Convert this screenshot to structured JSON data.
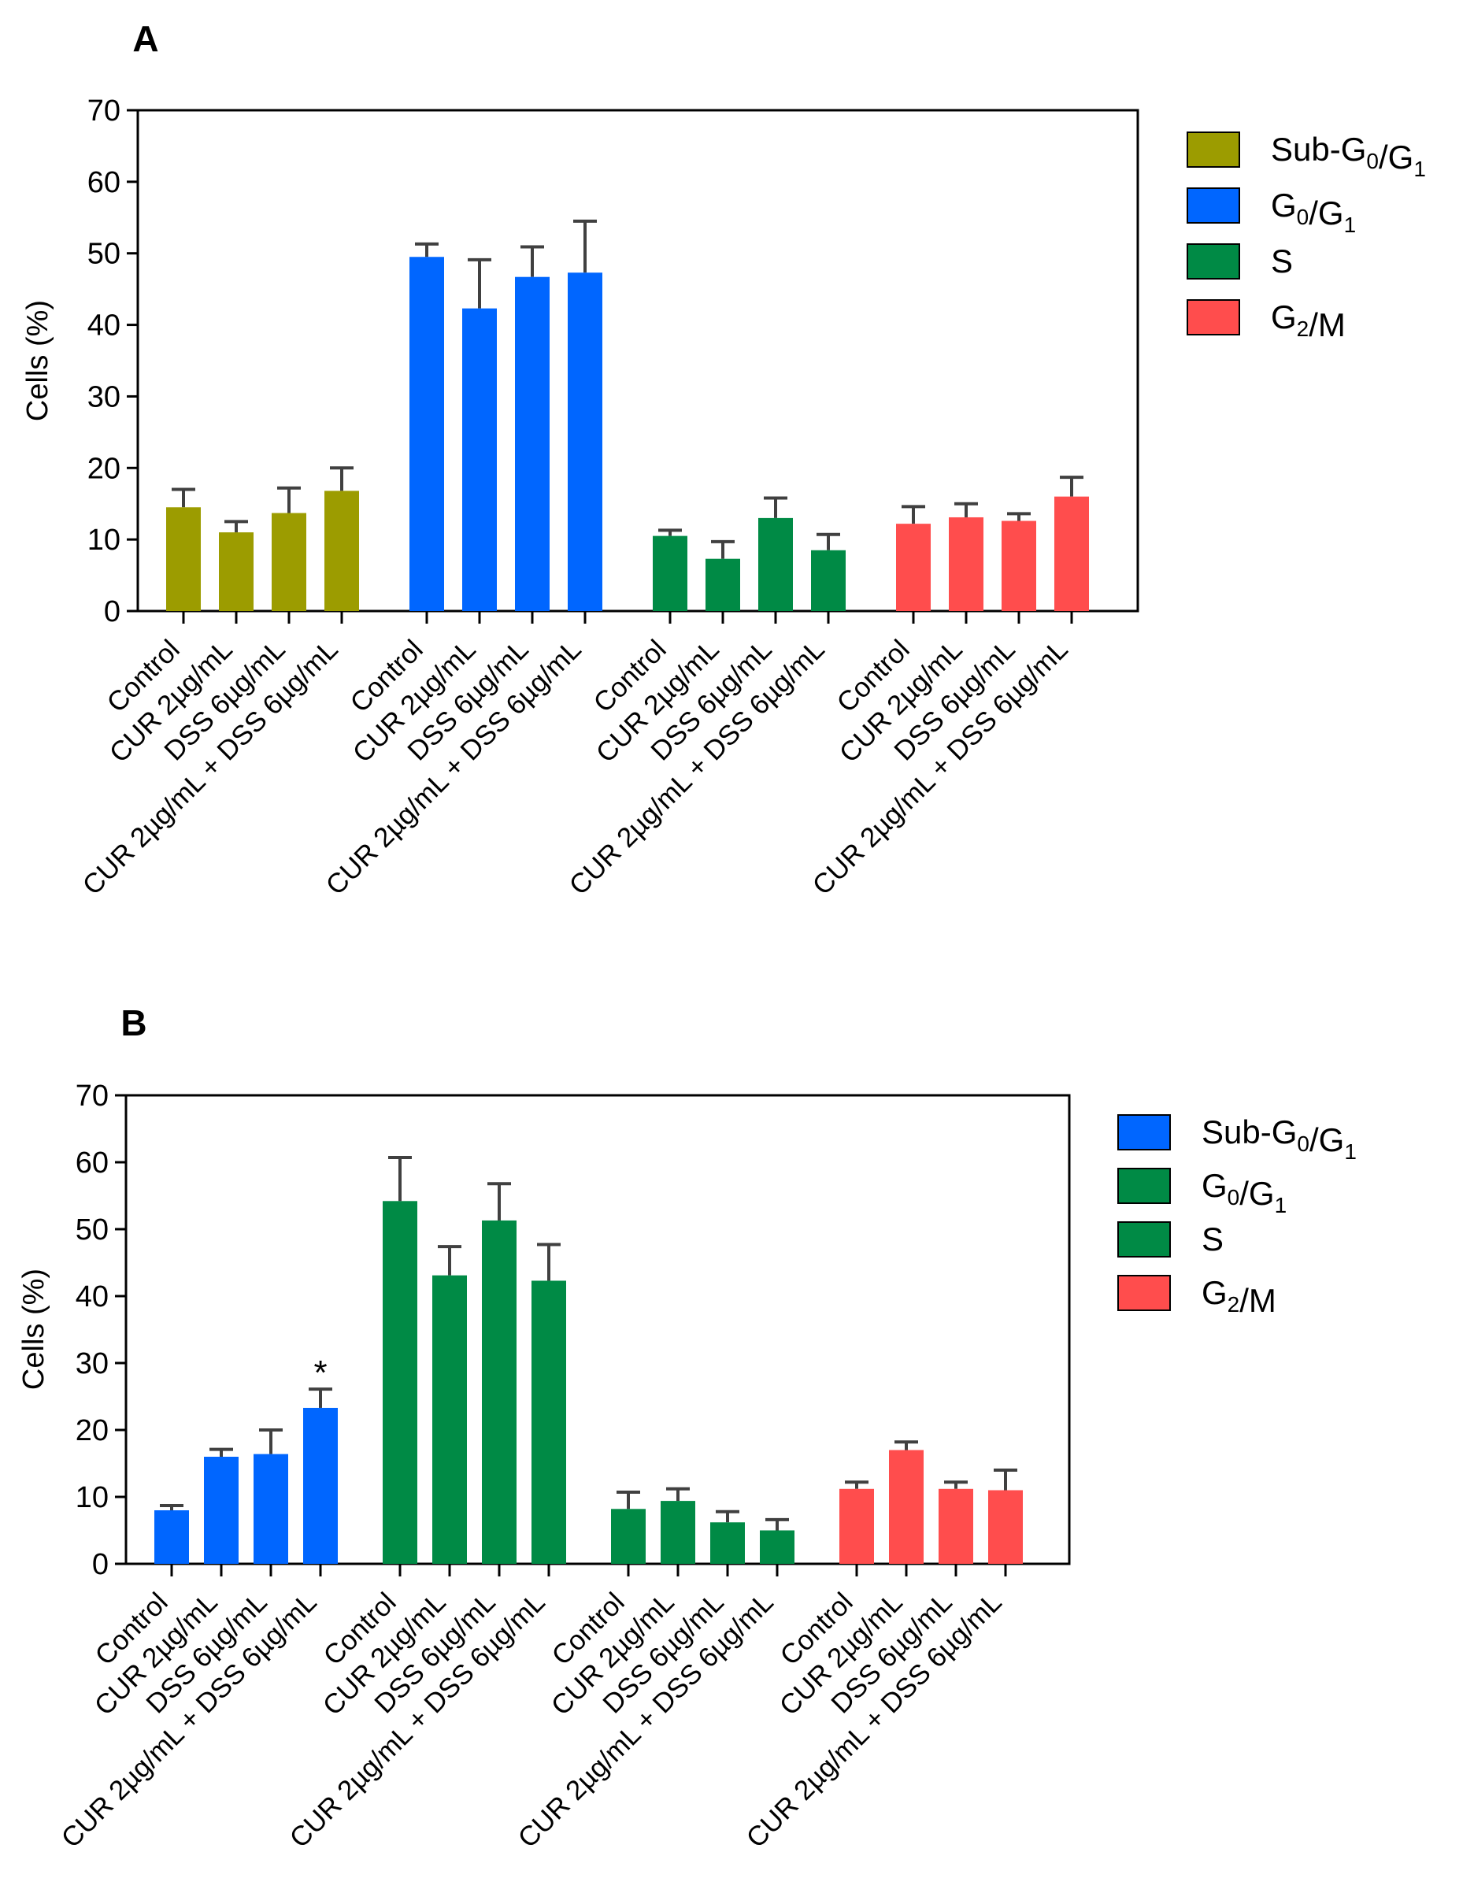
{
  "chart_data": [
    {
      "panel": "A",
      "type": "bar",
      "ylabel": "Cells (%)",
      "ylim": [
        0,
        70
      ],
      "yticks": [
        0,
        10,
        20,
        30,
        40,
        50,
        60,
        70
      ],
      "categories": [
        "Control",
        "CUR 2µg/mL",
        "DSS 6µg/mL",
        "CUR 2µg/mL + DSS 6µg/mL"
      ],
      "series": [
        {
          "name": "Sub-G0/G1",
          "label_parts": [
            [
              "Sub-G",
              ""
            ],
            [
              "0",
              "sub"
            ],
            [
              "/G",
              ""
            ],
            [
              "1",
              "sub"
            ]
          ],
          "color": "#9c9c00",
          "values": [
            14.5,
            11.0,
            13.7,
            16.8
          ],
          "errors": [
            2.5,
            1.5,
            3.5,
            3.2
          ],
          "annotations": [
            "",
            "",
            "",
            ""
          ]
        },
        {
          "name": "G0/G1",
          "label_parts": [
            [
              "G",
              ""
            ],
            [
              "0",
              "sub"
            ],
            [
              "/G",
              ""
            ],
            [
              "1",
              "sub"
            ]
          ],
          "color": "#0066ff",
          "values": [
            49.5,
            42.3,
            46.7,
            47.3
          ],
          "errors": [
            1.8,
            6.8,
            4.2,
            7.2
          ],
          "annotations": [
            "",
            "",
            "",
            ""
          ]
        },
        {
          "name": "S",
          "label_parts": [
            [
              "S",
              ""
            ]
          ],
          "color": "#008a45",
          "values": [
            10.5,
            7.3,
            13.0,
            8.5
          ],
          "errors": [
            0.8,
            2.4,
            2.8,
            2.2
          ],
          "annotations": [
            "",
            "",
            "",
            ""
          ]
        },
        {
          "name": "G2/M",
          "label_parts": [
            [
              "G",
              ""
            ],
            [
              "2",
              "sub"
            ],
            [
              "/M",
              ""
            ]
          ],
          "color": "#ff4d4d",
          "values": [
            12.2,
            13.1,
            12.6,
            16.0
          ],
          "errors": [
            2.4,
            1.9,
            1.0,
            2.7
          ],
          "annotations": [
            "",
            "",
            "",
            ""
          ]
        }
      ]
    },
    {
      "panel": "B",
      "type": "bar",
      "ylabel": "Cells (%)",
      "ylim": [
        0,
        70
      ],
      "yticks": [
        0,
        10,
        20,
        30,
        40,
        50,
        60,
        70
      ],
      "categories": [
        "Control",
        "CUR 2µg/mL",
        "DSS 6µg/mL",
        "CUR 2µg/mL + DSS 6µg/mL"
      ],
      "series": [
        {
          "name": "Sub-G0/G1",
          "label_parts": [
            [
              "Sub-G",
              ""
            ],
            [
              "0",
              "sub"
            ],
            [
              "/G",
              ""
            ],
            [
              "1",
              "sub"
            ]
          ],
          "color": "#0066ff",
          "values": [
            8.0,
            16.0,
            16.4,
            23.3
          ],
          "errors": [
            0.7,
            1.1,
            3.6,
            2.8
          ],
          "annotations": [
            "",
            "",
            "",
            "*"
          ]
        },
        {
          "name": "G0/G1",
          "label_parts": [
            [
              "G",
              ""
            ],
            [
              "0",
              "sub"
            ],
            [
              "/G",
              ""
            ],
            [
              "1",
              "sub"
            ]
          ],
          "color": "#008a45",
          "values": [
            54.2,
            43.1,
            51.3,
            42.3
          ],
          "errors": [
            6.5,
            4.3,
            5.5,
            5.4
          ],
          "annotations": [
            "",
            "",
            "",
            ""
          ]
        },
        {
          "name": "S",
          "label_parts": [
            [
              "S",
              ""
            ]
          ],
          "color": "#008a45",
          "values": [
            8.2,
            9.4,
            6.2,
            5.0
          ],
          "errors": [
            2.5,
            1.8,
            1.6,
            1.6
          ],
          "annotations": [
            "",
            "",
            "",
            ""
          ]
        },
        {
          "name": "G2/M",
          "label_parts": [
            [
              "G",
              ""
            ],
            [
              "2",
              "sub"
            ],
            [
              "/M",
              ""
            ]
          ],
          "color": "#ff4d4d",
          "values": [
            11.2,
            17.0,
            11.2,
            11.0
          ],
          "errors": [
            1.0,
            1.2,
            1.0,
            3.0
          ],
          "annotations": [
            "",
            "",
            "",
            ""
          ]
        }
      ]
    }
  ]
}
